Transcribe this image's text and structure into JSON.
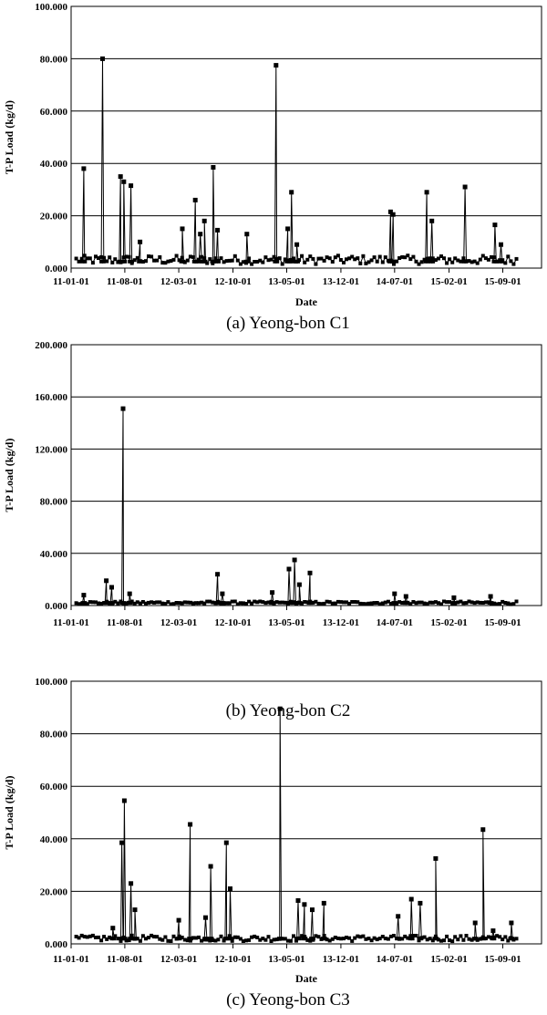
{
  "chart_data": [
    {
      "type": "line",
      "caption": "(a)  Yeong-bon  C1",
      "xlabel": "Date",
      "ylabel": "T-P Load (kg/d)",
      "ylim": [
        0,
        100
      ],
      "yticks": [
        "0.000",
        "20.000",
        "40.000",
        "60.000",
        "80.000",
        "100.000"
      ],
      "xlim": [
        "2011-01-01",
        "2016-02-01"
      ],
      "xticks": [
        "11-01-01",
        "11-08-01",
        "12-03-01",
        "12-10-01",
        "13-05-01",
        "13-12-01",
        "14-07-01",
        "15-02-01",
        "15-09-01"
      ],
      "grid": true,
      "series": [
        {
          "marker": "square",
          "baseline": 1.5,
          "points": [
            [
              "2011-02-20",
              38
            ],
            [
              "2011-05-05",
              80
            ],
            [
              "2011-07-15",
              35
            ],
            [
              "2011-07-28",
              33
            ],
            [
              "2011-08-25",
              31.5
            ],
            [
              "2011-09-30",
              10
            ],
            [
              "2012-03-15",
              15
            ],
            [
              "2012-05-05",
              26
            ],
            [
              "2012-05-25",
              13
            ],
            [
              "2012-06-10",
              18
            ],
            [
              "2012-07-15",
              38.5
            ],
            [
              "2012-08-01",
              14.5
            ],
            [
              "2012-11-25",
              13
            ],
            [
              "2013-03-20",
              77.5
            ],
            [
              "2013-05-05",
              15
            ],
            [
              "2013-05-20",
              29
            ],
            [
              "2013-06-10",
              9
            ],
            [
              "2014-06-15",
              21.5
            ],
            [
              "2014-06-25",
              20.5
            ],
            [
              "2014-11-05",
              29
            ],
            [
              "2014-11-25",
              18
            ],
            [
              "2015-04-05",
              31
            ],
            [
              "2015-08-01",
              16.5
            ],
            [
              "2015-08-25",
              9
            ]
          ]
        }
      ]
    },
    {
      "type": "line",
      "caption": "(b)  Yeong-bon  C2",
      "xlabel": "",
      "ylabel": "T-P Load (kg/d)",
      "ylim": [
        0,
        200
      ],
      "yticks": [
        "0.000",
        "40.000",
        "80.000",
        "120.000",
        "160.000",
        "200.000"
      ],
      "xlim": [
        "2011-01-01",
        "2016-02-01"
      ],
      "xticks": [
        "11-01-01",
        "11-08-01",
        "12-03-01",
        "12-10-01",
        "13-05-01",
        "13-12-01",
        "14-07-01",
        "15-02-01",
        "15-09-01"
      ],
      "grid": true,
      "series": [
        {
          "marker": "square",
          "baseline": 1,
          "points": [
            [
              "2011-02-20",
              8
            ],
            [
              "2011-05-20",
              19
            ],
            [
              "2011-06-10",
              14
            ],
            [
              "2011-07-25",
              151
            ],
            [
              "2011-08-20",
              9
            ],
            [
              "2012-08-01",
              24
            ],
            [
              "2012-08-20",
              9
            ],
            [
              "2013-03-05",
              10
            ],
            [
              "2013-05-10",
              28
            ],
            [
              "2013-06-01",
              35
            ],
            [
              "2013-06-20",
              16
            ],
            [
              "2013-08-01",
              25
            ],
            [
              "2014-07-01",
              9
            ],
            [
              "2014-08-15",
              7
            ],
            [
              "2015-02-20",
              6
            ],
            [
              "2015-07-15",
              7
            ]
          ]
        }
      ]
    },
    {
      "type": "line",
      "caption": "(c)  Yeong-bon  C3",
      "xlabel": "Date",
      "ylabel": "T-P Load (kg/d)",
      "ylim": [
        0,
        100
      ],
      "yticks": [
        "0.000",
        "20.000",
        "40.000",
        "60.000",
        "80.000",
        "100.000"
      ],
      "xlim": [
        "2011-01-01",
        "2016-02-01"
      ],
      "xticks": [
        "11-01-01",
        "11-08-01",
        "12-03-01",
        "12-10-01",
        "13-05-01",
        "13-12-01",
        "14-07-01",
        "15-02-01",
        "15-09-01"
      ],
      "grid": true,
      "series": [
        {
          "marker": "square",
          "baseline": 1,
          "points": [
            [
              "2011-06-15",
              6
            ],
            [
              "2011-07-20",
              38.5
            ],
            [
              "2011-07-30",
              54.5
            ],
            [
              "2011-08-25",
              23
            ],
            [
              "2011-09-10",
              13
            ],
            [
              "2012-03-01",
              9
            ],
            [
              "2012-04-15",
              45.5
            ],
            [
              "2012-06-15",
              10
            ],
            [
              "2012-07-05",
              29.5
            ],
            [
              "2012-09-05",
              38.5
            ],
            [
              "2012-09-20",
              21
            ],
            [
              "2013-04-05",
              89.5
            ],
            [
              "2013-06-15",
              16.5
            ],
            [
              "2013-07-10",
              15
            ],
            [
              "2013-08-10",
              13
            ],
            [
              "2013-09-25",
              15.5
            ],
            [
              "2014-07-15",
              10.5
            ],
            [
              "2014-09-05",
              17
            ],
            [
              "2014-10-10",
              15.5
            ],
            [
              "2014-12-10",
              32.5
            ],
            [
              "2015-05-15",
              8
            ],
            [
              "2015-06-15",
              43.5
            ],
            [
              "2015-07-25",
              5
            ],
            [
              "2015-10-05",
              8
            ]
          ]
        }
      ]
    }
  ]
}
